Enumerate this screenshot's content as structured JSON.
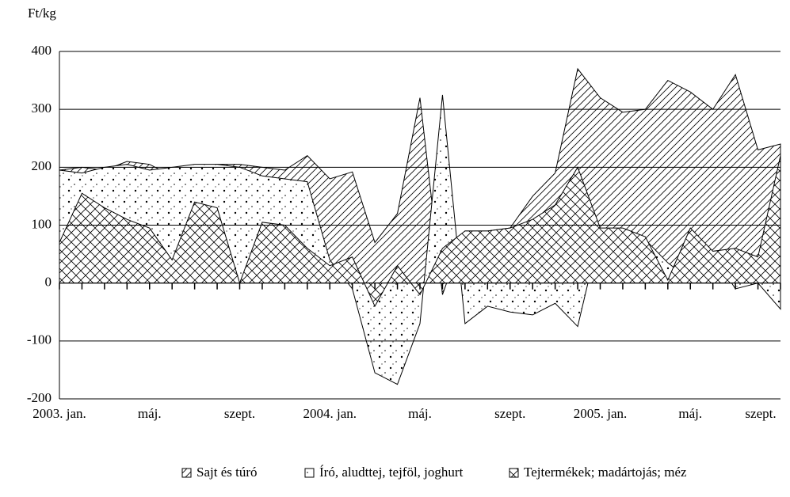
{
  "chart_data": {
    "type": "area",
    "y_label": "Ft/kg",
    "categories": [
      "2003. jan.",
      null,
      null,
      null,
      "máj.",
      null,
      null,
      null,
      "szept.",
      null,
      null,
      null,
      "2004. jan.",
      null,
      null,
      null,
      "máj.",
      null,
      null,
      null,
      "szept.",
      null,
      null,
      null,
      "2005. jan.",
      null,
      null,
      null,
      "máj.",
      null,
      null,
      null,
      "szept."
    ],
    "series": [
      {
        "name": "Sajt és túró",
        "color": "#000000",
        "values": [
          195,
          200,
          195,
          210,
          205,
          185,
          200,
          205,
          205,
          200,
          195,
          220,
          180,
          192,
          70,
          120,
          320,
          -20,
          90,
          90,
          95,
          150,
          190,
          370,
          320,
          295,
          300,
          350,
          330,
          300,
          360,
          230,
          240
        ]
      },
      {
        "name": "Író, aludttej, tejföl, joghurt",
        "color": "#000000",
        "values": [
          195,
          190,
          200,
          205,
          195,
          200,
          205,
          205,
          200,
          185,
          180,
          175,
          40,
          -10,
          -155,
          -175,
          -70,
          325,
          -70,
          -40,
          -50,
          -55,
          -35,
          -75,
          90,
          90,
          75,
          35,
          5,
          50,
          -10,
          0,
          -45
        ]
      },
      {
        "name": "Tejtermékek; madártojás; méz",
        "color": "#000000",
        "values": [
          70,
          155,
          130,
          110,
          95,
          40,
          140,
          130,
          0,
          105,
          100,
          60,
          30,
          45,
          -40,
          30,
          -20,
          60,
          90,
          90,
          95,
          110,
          135,
          200,
          95,
          95,
          80,
          5,
          95,
          55,
          60,
          45,
          220
        ]
      }
    ],
    "ylim": [
      -200,
      400
    ],
    "yticks": [
      -200,
      -100,
      0,
      100,
      200,
      300,
      400
    ],
    "grid": true,
    "legend": "bottom"
  }
}
